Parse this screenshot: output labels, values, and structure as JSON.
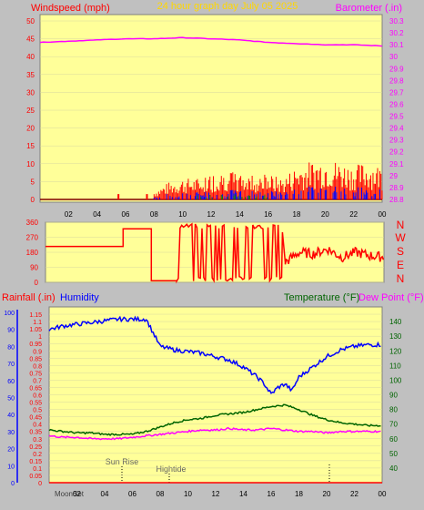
{
  "header": {
    "left_label": "Windspeed (mph)",
    "title": "24 hour graph day   July 05 2025",
    "right_label": "Barometer (.in)"
  },
  "compass": [
    "N",
    "W",
    "S",
    "E",
    "N"
  ],
  "bottom_header": {
    "rainfall_label": "Rainfall (.in)",
    "humidity_label": "Humidity",
    "temperature_label": "Temperature (°F)",
    "dewpoint_label": "Dew Point (°F)"
  },
  "markers": {
    "sunrise": "Sun Rise",
    "hightide": "Hightide",
    "moonset": "MoonSet"
  },
  "colors": {
    "plot_bg": "#ffff99",
    "frame_bg": "#c0c0c0",
    "wind": "#ff0000",
    "gust_blue": "#0000ff",
    "gust_green": "#008000",
    "barometer": "#ff00ff",
    "humidity": "#0000ff",
    "temperature": "#006400",
    "dewpoint": "#ff00ff",
    "rainfall": "#ff0000",
    "direction": "#ff0000",
    "title": "#ffd700"
  },
  "chart_data": [
    {
      "type": "bar",
      "x_ticks": [
        "02",
        "04",
        "06",
        "08",
        "10",
        "12",
        "14",
        "16",
        "18",
        "20",
        "22",
        "00"
      ],
      "ylim": [
        0,
        50
      ],
      "y_ticks": [
        "0",
        "5",
        "10",
        "15",
        "20",
        "25",
        "30",
        "35",
        "40",
        "45",
        "50"
      ],
      "y2lim": [
        28.8,
        30.3
      ],
      "y2_ticks": [
        "28.8",
        "28.9",
        "29",
        "29.1",
        "29.2",
        "29.3",
        "29.4",
        "29.5",
        "29.6",
        "29.7",
        "29.8",
        "29.9",
        "30",
        "30.1",
        "30.2",
        "30.3"
      ],
      "series": [
        {
          "name": "Windspeed",
          "axis": "left",
          "x": [
            0,
            5.5,
            8,
            9,
            10,
            11,
            12,
            13,
            14,
            15,
            16,
            17,
            18,
            19,
            20,
            21,
            22,
            23,
            24
          ],
          "y": [
            0,
            0,
            2,
            4,
            5,
            5,
            6,
            7,
            6,
            6,
            6,
            5,
            8,
            9,
            10,
            9,
            8,
            9,
            8
          ]
        },
        {
          "name": "Barometer",
          "axis": "right",
          "x": [
            0,
            2,
            4,
            6,
            8,
            10,
            12,
            14,
            16,
            18,
            20,
            22,
            24
          ],
          "y": [
            30.12,
            30.13,
            30.14,
            30.15,
            30.15,
            30.16,
            30.15,
            30.14,
            30.12,
            30.11,
            30.1,
            30.1,
            30.09
          ]
        }
      ]
    },
    {
      "type": "line",
      "x_ticks": [],
      "ylim": [
        0,
        360
      ],
      "y_ticks": [
        "0",
        "90",
        "180",
        "270",
        "360"
      ],
      "series": [
        {
          "name": "Wind direction",
          "x": [
            0,
            5.5,
            5.6,
            7.5,
            7.6,
            9,
            9.2,
            10,
            11,
            12,
            13,
            14,
            15,
            16,
            16.5,
            17,
            18,
            19,
            20,
            21,
            22,
            23,
            24
          ],
          "y": [
            215,
            215,
            320,
            320,
            10,
            10,
            320,
            10,
            320,
            10,
            330,
            10,
            320,
            10,
            300,
            120,
            180,
            170,
            200,
            150,
            180,
            160,
            150
          ]
        }
      ]
    },
    {
      "type": "line",
      "x_ticks": [
        "02",
        "04",
        "06",
        "08",
        "10",
        "12",
        "14",
        "16",
        "18",
        "20",
        "22",
        "00"
      ],
      "ylim": [
        0,
        1.2
      ],
      "y_ticks": [
        "0",
        "0.05",
        "0.1",
        "0.15",
        "0.2",
        "0.25",
        "0.3",
        "0.35",
        "0.4",
        "0.45",
        "0.5",
        "0.55",
        "0.6",
        "0.65",
        "0.7",
        "0.75",
        "0.8",
        "0.85",
        "0.9",
        "0.95",
        "1",
        "1.05",
        "1.1",
        "1.15"
      ],
      "humidity_ticks": [
        "0",
        "10",
        "20",
        "30",
        "40",
        "50",
        "60",
        "70",
        "80",
        "90",
        "100"
      ],
      "y2_ticks": [
        "40",
        "50",
        "60",
        "70",
        "80",
        "90",
        "100",
        "110",
        "120",
        "130",
        "140"
      ],
      "y2lim": [
        30,
        150
      ],
      "series": [
        {
          "name": "Humidity",
          "axis": "humidity",
          "x": [
            0,
            1,
            2,
            3,
            4,
            5,
            6,
            7,
            7.5,
            8,
            9,
            10,
            11,
            12,
            13,
            14,
            15,
            15.5,
            16,
            16.5,
            17,
            17.5,
            18,
            19,
            20,
            21,
            22,
            23,
            24
          ],
          "y": [
            90,
            92,
            93,
            94,
            95,
            96,
            96,
            96,
            88,
            80,
            78,
            77,
            76,
            74,
            72,
            68,
            62,
            58,
            52,
            56,
            58,
            54,
            62,
            68,
            74,
            78,
            80,
            81,
            81
          ]
        },
        {
          "name": "Temperature",
          "axis": "right",
          "x": [
            0,
            1,
            2,
            3,
            4,
            5,
            6,
            7,
            8,
            9,
            10,
            11,
            12,
            13,
            14,
            15,
            16,
            17,
            18,
            19,
            20,
            21,
            22,
            23,
            24
          ],
          "y": [
            66,
            65,
            64,
            64,
            63,
            63,
            63,
            65,
            68,
            71,
            73,
            74,
            76,
            77,
            78,
            80,
            82,
            83,
            80,
            76,
            73,
            71,
            70,
            69,
            69
          ]
        },
        {
          "name": "Dew Point",
          "axis": "right",
          "x": [
            0,
            1,
            2,
            3,
            4,
            5,
            6,
            7,
            8,
            9,
            10,
            11,
            12,
            13,
            14,
            15,
            16,
            17,
            18,
            19,
            20,
            21,
            22,
            23,
            24
          ],
          "y": [
            62,
            61,
            61,
            60,
            60,
            60,
            61,
            62,
            63,
            64,
            65,
            66,
            66,
            67,
            66,
            66,
            67,
            66,
            65,
            65,
            64,
            65,
            65,
            65,
            65
          ]
        },
        {
          "name": "Rainfall",
          "axis": "left",
          "x": [
            0,
            24
          ],
          "y": [
            0,
            0
          ]
        }
      ]
    }
  ]
}
